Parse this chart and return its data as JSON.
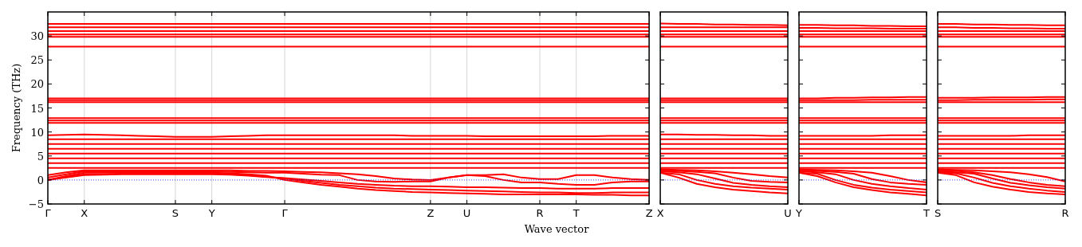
{
  "chart_data": [
    {
      "type": "line",
      "color": "#ff0000",
      "ylabel": "Frequency (THz)",
      "xlabel": "Wave vector",
      "ylim": [
        -5,
        35
      ],
      "yticks": [
        -5,
        0,
        5,
        10,
        15,
        20,
        25,
        30
      ],
      "grid": "x",
      "line_style": "solid",
      "marker": "none",
      "categories": [
        "Γ",
        null,
        "X",
        null,
        null,
        null,
        null,
        "S",
        null,
        "Y",
        null,
        null,
        null,
        "Γ",
        null,
        null,
        null,
        null,
        null,
        null,
        null,
        "Z",
        null,
        "U",
        null,
        null,
        null,
        "R",
        null,
        "T",
        null,
        null,
        null,
        "Z"
      ],
      "ref_lines": [
        {
          "axis": "y",
          "value": 0,
          "color": "#0000ff",
          "line_style": "dotted"
        }
      ],
      "series": [
        {
          "values": [
            32.5,
            32.5,
            32.5,
            32.5,
            32.5,
            32.5,
            32.5,
            32.5,
            32.5,
            32.5,
            32.5,
            32.5,
            32.5,
            32.5,
            32.5,
            32.5,
            32.5,
            32.5,
            32.5,
            32.5,
            32.5,
            32.5,
            32.5,
            32.5,
            32.5,
            32.5,
            32.5,
            32.5,
            32.5,
            32.5,
            32.5,
            32.5,
            32.5,
            32.5
          ]
        },
        {
          "values": [
            31.8,
            31.8,
            31.8,
            31.8,
            31.8,
            31.8,
            31.8,
            31.8,
            31.8,
            31.8,
            31.8,
            31.8,
            31.8,
            31.8,
            31.8,
            31.8,
            31.8,
            31.8,
            31.8,
            31.8,
            31.8,
            31.8,
            31.8,
            31.8,
            31.8,
            31.8,
            31.8,
            31.8,
            31.8,
            31.8,
            31.8,
            31.8,
            31.8,
            31.8
          ]
        },
        {
          "values": [
            31,
            31,
            31,
            31,
            31,
            31,
            31,
            31,
            31,
            31,
            31,
            31,
            31,
            31,
            31,
            31,
            31,
            31,
            31,
            31,
            31,
            31,
            31,
            31,
            31,
            31,
            31,
            31,
            31,
            31,
            31,
            31,
            31,
            31
          ]
        },
        {
          "values": [
            30.3,
            30.3,
            30.3,
            30.3,
            30.3,
            30.3,
            30.3,
            30.3,
            30.3,
            30.3,
            30.3,
            30.3,
            30.3,
            30.3,
            30.3,
            30.3,
            30.3,
            30.3,
            30.3,
            30.3,
            30.3,
            30.3,
            30.3,
            30.3,
            30.3,
            30.3,
            30.3,
            30.3,
            30.3,
            30.3,
            30.3,
            30.3,
            30.3,
            30.3
          ]
        },
        {
          "values": [
            29.8,
            29.8,
            29.8,
            29.8,
            29.8,
            29.8,
            29.8,
            29.8,
            29.8,
            29.8,
            29.8,
            29.8,
            29.8,
            29.8,
            29.8,
            29.8,
            29.8,
            29.8,
            29.8,
            29.8,
            29.8,
            29.8,
            29.8,
            29.8,
            29.8,
            29.8,
            29.8,
            29.8,
            29.8,
            29.8,
            29.8,
            29.8,
            29.8,
            29.8
          ]
        },
        {
          "values": [
            27.8,
            27.8,
            27.8,
            27.8,
            27.8,
            27.8,
            27.8,
            27.8,
            27.8,
            27.8,
            27.8,
            27.8,
            27.8,
            27.8,
            27.8,
            27.8,
            27.8,
            27.8,
            27.8,
            27.8,
            27.8,
            27.8,
            27.8,
            27.8,
            27.8,
            27.8,
            27.8,
            27.8,
            27.8,
            27.8,
            27.8,
            27.8,
            27.8,
            27.8
          ]
        },
        {
          "values": [
            17,
            17,
            17,
            17,
            17,
            17,
            17,
            17,
            17,
            17,
            17,
            17,
            17,
            17,
            17,
            17,
            17,
            17,
            17,
            17,
            17,
            17,
            17,
            17,
            17,
            17,
            17,
            17,
            17,
            17,
            17,
            17,
            17,
            17
          ]
        },
        {
          "values": [
            16.6,
            16.6,
            16.6,
            16.6,
            16.6,
            16.6,
            16.6,
            16.6,
            16.6,
            16.6,
            16.6,
            16.6,
            16.6,
            16.6,
            16.6,
            16.6,
            16.6,
            16.6,
            16.6,
            16.6,
            16.6,
            16.6,
            16.6,
            16.6,
            16.6,
            16.6,
            16.6,
            16.6,
            16.6,
            16.6,
            16.6,
            16.6,
            16.6,
            16.6
          ]
        },
        {
          "values": [
            16.2,
            16.2,
            16.2,
            16.2,
            16.2,
            16.2,
            16.2,
            16.2,
            16.2,
            16.2,
            16.2,
            16.2,
            16.2,
            16.2,
            16.2,
            16.2,
            16.2,
            16.2,
            16.2,
            16.2,
            16.2,
            16.2,
            16.2,
            16.2,
            16.2,
            16.2,
            16.2,
            16.2,
            16.2,
            16.2,
            16.2,
            16.2,
            16.2,
            16.2
          ]
        },
        {
          "values": [
            12.9,
            12.9,
            12.9,
            12.9,
            12.9,
            12.9,
            12.9,
            12.9,
            12.9,
            12.9,
            12.9,
            12.9,
            12.9,
            12.9,
            12.9,
            12.9,
            12.9,
            12.9,
            12.9,
            12.9,
            12.9,
            12.9,
            12.9,
            12.9,
            12.9,
            12.9,
            12.9,
            12.9,
            12.9,
            12.9,
            12.9,
            12.9,
            12.9,
            12.9
          ]
        },
        {
          "values": [
            12.4,
            12.4,
            12.4,
            12.4,
            12.4,
            12.4,
            12.4,
            12.4,
            12.4,
            12.4,
            12.4,
            12.4,
            12.4,
            12.4,
            12.4,
            12.4,
            12.4,
            12.4,
            12.4,
            12.4,
            12.4,
            12.4,
            12.4,
            12.4,
            12.4,
            12.4,
            12.4,
            12.4,
            12.4,
            12.4,
            12.4,
            12.4,
            12.4,
            12.4
          ]
        },
        {
          "values": [
            11.9,
            11.9,
            11.9,
            11.9,
            11.9,
            11.9,
            11.9,
            11.9,
            11.9,
            11.9,
            11.9,
            11.9,
            11.9,
            11.9,
            11.9,
            11.9,
            11.9,
            11.9,
            11.9,
            11.9,
            11.9,
            11.9,
            11.9,
            11.9,
            11.9,
            11.9,
            11.9,
            11.9,
            11.9,
            11.9,
            11.9,
            11.9,
            11.9,
            11.9
          ]
        },
        {
          "values": [
            9.3,
            9.4,
            9.5,
            9.4,
            9.3,
            9.2,
            9.1,
            9,
            9,
            9,
            9.1,
            9.2,
            9.3,
            9.3,
            9.3,
            9.3,
            9.3,
            9.3,
            9.3,
            9.3,
            9.2,
            9.2,
            9.2,
            9.2,
            9.1,
            9.1,
            9.1,
            9.1,
            9.1,
            9.1,
            9.1,
            9.2,
            9.2,
            9.2
          ]
        },
        {
          "values": [
            8.5,
            8.5,
            8.5,
            8.5,
            8.5,
            8.5,
            8.5,
            8.5,
            8.5,
            8.5,
            8.5,
            8.5,
            8.5,
            8.5,
            8.5,
            8.5,
            8.5,
            8.5,
            8.5,
            8.5,
            8.5,
            8.5,
            8.5,
            8.5,
            8.5,
            8.5,
            8.5,
            8.5,
            8.5,
            8.5,
            8.5,
            8.5,
            8.5,
            8.5
          ]
        },
        {
          "values": [
            7.5,
            7.5,
            7.5,
            7.5,
            7.5,
            7.5,
            7.5,
            7.5,
            7.5,
            7.5,
            7.5,
            7.5,
            7.5,
            7.5,
            7.5,
            7.5,
            7.5,
            7.5,
            7.5,
            7.5,
            7.5,
            7.5,
            7.5,
            7.5,
            7.5,
            7.5,
            7.5,
            7.5,
            7.5,
            7.5,
            7.5,
            7.5,
            7.5,
            7.5
          ]
        },
        {
          "values": [
            6.5,
            6.5,
            6.5,
            6.5,
            6.5,
            6.5,
            6.5,
            6.5,
            6.5,
            6.5,
            6.5,
            6.5,
            6.5,
            6.5,
            6.5,
            6.5,
            6.5,
            6.5,
            6.5,
            6.5,
            6.5,
            6.5,
            6.5,
            6.5,
            6.5,
            6.5,
            6.5,
            6.5,
            6.5,
            6.5,
            6.5,
            6.5,
            6.5,
            6.5
          ]
        },
        {
          "values": [
            5.5,
            5.5,
            5.5,
            5.5,
            5.5,
            5.5,
            5.5,
            5.5,
            5.5,
            5.5,
            5.5,
            5.5,
            5.5,
            5.5,
            5.5,
            5.5,
            5.5,
            5.5,
            5.5,
            5.5,
            5.5,
            5.5,
            5.5,
            5.5,
            5.5,
            5.5,
            5.5,
            5.5,
            5.5,
            5.5,
            5.5,
            5.5,
            5.5,
            5.5
          ]
        },
        {
          "values": [
            4.5,
            4.5,
            4.5,
            4.5,
            4.5,
            4.5,
            4.5,
            4.5,
            4.5,
            4.5,
            4.5,
            4.5,
            4.5,
            4.5,
            4.5,
            4.5,
            4.5,
            4.5,
            4.5,
            4.5,
            4.5,
            4.5,
            4.5,
            4.5,
            4.5,
            4.5,
            4.5,
            4.5,
            4.5,
            4.5,
            4.5,
            4.5,
            4.5,
            4.5
          ]
        },
        {
          "values": [
            3.5,
            3.5,
            3.5,
            3.5,
            3.5,
            3.5,
            3.5,
            3.5,
            3.5,
            3.5,
            3.5,
            3.5,
            3.5,
            3.5,
            3.5,
            3.5,
            3.5,
            3.5,
            3.5,
            3.5,
            3.5,
            3.5,
            3.5,
            3.5,
            3.5,
            3.5,
            3.5,
            3.5,
            3.5,
            3.5,
            3.5,
            3.5,
            3.5,
            3.5
          ]
        },
        {
          "values": [
            2.5,
            2.5,
            2.5,
            2.5,
            2.5,
            2.5,
            2.5,
            2.5,
            2.5,
            2.5,
            2.5,
            2.5,
            2.5,
            2.5,
            2.5,
            2.5,
            2.5,
            2.5,
            2.5,
            2.5,
            2.5,
            2.5,
            2.5,
            2.5,
            2.5,
            2.5,
            2.5,
            2.5,
            2.5,
            2.5,
            2.5,
            2.5,
            2.5,
            2.5
          ]
        },
        {
          "values": [
            1,
            1.6,
            2,
            2,
            2,
            2,
            2,
            2,
            2,
            2,
            2,
            1.9,
            1.9,
            1.8,
            1.7,
            1.6,
            1.4,
            1.2,
            0.8,
            0.3,
            0.1,
            0,
            0.5,
            1,
            1,
            1.2,
            0.5,
            0.2,
            0.2,
            1,
            1,
            0.5,
            0.2,
            0
          ]
        },
        {
          "values": [
            0.5,
            1.2,
            1.8,
            1.8,
            1.8,
            1.8,
            1.8,
            1.8,
            1.8,
            1.8,
            1.7,
            1.6,
            1.5,
            1.5,
            1.3,
            1.1,
            1,
            0,
            -0.3,
            -0.4,
            -0.3,
            -0.3,
            0.5,
            1,
            0.8,
            0,
            -0.5,
            -0.5,
            -0.8,
            -1,
            -1,
            -0.5,
            -0.3,
            -0.3
          ]
        },
        {
          "values": [
            0,
            0.5,
            1,
            1.1,
            1.2,
            1.2,
            1.2,
            1.2,
            1.2,
            1.2,
            1.1,
            0.9,
            0.6,
            0.4,
            0.1,
            -0.2,
            -0.5,
            -0.8,
            -1,
            -1.2,
            -1.3,
            -1.3,
            -1.4,
            -1.5,
            -1.5,
            -1.6,
            -1.7,
            -1.7,
            -1.8,
            -1.8,
            -1.8,
            -1.7,
            -1.7,
            -1.7
          ]
        },
        {
          "values": [
            0,
            0.6,
            1.2,
            1.2,
            1.3,
            1.3,
            1.3,
            1.3,
            1.3,
            1.3,
            1.2,
            1,
            0.7,
            0.3,
            -0.2,
            -0.6,
            -1,
            -1.3,
            -1.6,
            -1.8,
            -1.9,
            -2,
            -2.1,
            -2.2,
            -2.3,
            -2.4,
            -2.5,
            -2.6,
            -2.6,
            -2.7,
            -2.7,
            -2.6,
            -2.6,
            -2.6
          ]
        },
        {
          "values": [
            0,
            0.8,
            1.5,
            1.5,
            1.5,
            1.5,
            1.5,
            1.5,
            1.5,
            1.5,
            1.4,
            1.2,
            0.9,
            0,
            -0.5,
            -1,
            -1.4,
            -1.8,
            -2.1,
            -2.3,
            -2.5,
            -2.6,
            -2.7,
            -2.8,
            -2.9,
            -3,
            -3,
            -3,
            -3,
            -3,
            -3.1,
            -3.1,
            -3.2,
            -3.2
          ]
        }
      ]
    },
    {
      "type": "line",
      "color": "#ff0000",
      "ylim": [
        -5,
        35
      ],
      "yticks": [
        -5,
        0,
        5,
        10,
        15,
        20,
        25,
        30
      ],
      "tick_labels": "x",
      "line_style": "solid",
      "marker": "none",
      "categories": [
        "X",
        null,
        null,
        null,
        null,
        null,
        null,
        "U"
      ],
      "ref_lines": [
        {
          "axis": "y",
          "value": 0,
          "color": "#0000ff",
          "line_style": "dotted"
        }
      ],
      "series": [
        {
          "values": [
            32.6,
            32.5,
            32.5,
            32.4,
            32.4,
            32.3,
            32.3,
            32.2
          ]
        },
        {
          "values": [
            31.8,
            31.8,
            31.8,
            31.8,
            31.8,
            31.8,
            31.8,
            31.8
          ]
        },
        {
          "values": [
            31,
            31,
            31,
            31,
            31,
            31,
            31,
            31
          ]
        },
        {
          "values": [
            30.3,
            30.3,
            30.3,
            30.3,
            30.3,
            30.3,
            30.3,
            30.3
          ]
        },
        {
          "values": [
            29.8,
            29.8,
            29.8,
            29.8,
            29.8,
            29.8,
            29.8,
            29.8
          ]
        },
        {
          "values": [
            27.8,
            27.8,
            27.8,
            27.8,
            27.8,
            27.8,
            27.8,
            27.8
          ]
        },
        {
          "values": [
            17,
            17,
            17,
            17,
            17,
            17,
            17,
            17
          ]
        },
        {
          "values": [
            16.6,
            16.6,
            16.6,
            16.6,
            16.6,
            16.6,
            16.6,
            16.6
          ]
        },
        {
          "values": [
            16.2,
            16.2,
            16.2,
            16.2,
            16.2,
            16.2,
            16.2,
            16.2
          ]
        },
        {
          "values": [
            12.9,
            12.9,
            12.9,
            12.9,
            12.9,
            12.9,
            12.9,
            12.9
          ]
        },
        {
          "values": [
            12.4,
            12.4,
            12.4,
            12.4,
            12.4,
            12.4,
            12.4,
            12.4
          ]
        },
        {
          "values": [
            11.9,
            11.9,
            11.9,
            11.9,
            11.9,
            11.9,
            11.9,
            11.9
          ]
        },
        {
          "values": [
            9.5,
            9.5,
            9.4,
            9.4,
            9.3,
            9.3,
            9.2,
            9.2
          ]
        },
        {
          "values": [
            8.5,
            8.5,
            8.5,
            8.5,
            8.5,
            8.5,
            8.5,
            8.5
          ]
        },
        {
          "values": [
            7.5,
            7.5,
            7.5,
            7.5,
            7.5,
            7.5,
            7.5,
            7.5
          ]
        },
        {
          "values": [
            6.5,
            6.5,
            6.5,
            6.5,
            6.5,
            6.5,
            6.5,
            6.5
          ]
        },
        {
          "values": [
            5.5,
            5.5,
            5.5,
            5.5,
            5.5,
            5.5,
            5.5,
            5.5
          ]
        },
        {
          "values": [
            4.5,
            4.5,
            4.5,
            4.5,
            4.5,
            4.5,
            4.5,
            4.5
          ]
        },
        {
          "values": [
            3.5,
            3.5,
            3.5,
            3.5,
            3.5,
            3.5,
            3.5,
            3.5
          ]
        },
        {
          "values": [
            2.5,
            2.5,
            2.5,
            2.5,
            2.5,
            2.5,
            2.5,
            2.5
          ]
        },
        {
          "values": [
            2.2,
            2.1,
            2,
            1.8,
            1.5,
            1.2,
            0.8,
            0.5
          ]
        },
        {
          "values": [
            2,
            1.9,
            1.7,
            1.4,
            0.5,
            -0.2,
            -0.4,
            -0.5
          ]
        },
        {
          "values": [
            1.8,
            1.6,
            1.2,
            0.3,
            -0.6,
            -1,
            -1.3,
            -1.5
          ]
        },
        {
          "values": [
            1.5,
            1.2,
            0,
            -0.8,
            -1.3,
            -1.6,
            -1.8,
            -2
          ]
        },
        {
          "values": [
            1.5,
            0.5,
            -0.8,
            -1.5,
            -2,
            -2.3,
            -2.6,
            -2.8
          ]
        }
      ]
    },
    {
      "type": "line",
      "color": "#ff0000",
      "ylim": [
        -5,
        35
      ],
      "yticks": [
        -5,
        0,
        5,
        10,
        15,
        20,
        25,
        30
      ],
      "tick_labels": "x",
      "line_style": "solid",
      "marker": "none",
      "categories": [
        "Y",
        null,
        null,
        null,
        null,
        null,
        null,
        "T"
      ],
      "ref_lines": [
        {
          "axis": "y",
          "value": 0,
          "color": "#0000ff",
          "line_style": "dotted"
        }
      ],
      "series": [
        {
          "values": [
            32.3,
            32.3,
            32.2,
            32.2,
            32.1,
            32.1,
            32,
            32
          ]
        },
        {
          "values": [
            31.7,
            31.7,
            31.6,
            31.6,
            31.6,
            31.5,
            31.5,
            31.5
          ]
        },
        {
          "values": [
            31,
            31,
            31,
            31,
            31,
            31,
            31,
            31
          ]
        },
        {
          "values": [
            30.3,
            30.3,
            30.3,
            30.3,
            30.3,
            30.3,
            30.3,
            30.3
          ]
        },
        {
          "values": [
            29.8,
            29.8,
            29.8,
            29.8,
            29.8,
            29.8,
            29.8,
            29.8
          ]
        },
        {
          "values": [
            27.8,
            27.8,
            27.8,
            27.8,
            27.8,
            27.8,
            27.8,
            27.8
          ]
        },
        {
          "values": [
            17,
            17,
            17.1,
            17.1,
            17.2,
            17.2,
            17.3,
            17.3
          ]
        },
        {
          "values": [
            16.6,
            16.6,
            16.6,
            16.6,
            16.7,
            16.7,
            16.7,
            16.7
          ]
        },
        {
          "values": [
            16.2,
            16.2,
            16.2,
            16.2,
            16.2,
            16.2,
            16.2,
            16.2
          ]
        },
        {
          "values": [
            12.9,
            12.9,
            12.9,
            12.9,
            12.9,
            12.9,
            12.9,
            12.9
          ]
        },
        {
          "values": [
            12.4,
            12.4,
            12.4,
            12.4,
            12.4,
            12.4,
            12.4,
            12.4
          ]
        },
        {
          "values": [
            11.9,
            11.9,
            11.9,
            11.9,
            11.9,
            11.9,
            11.9,
            11.9
          ]
        },
        {
          "values": [
            9.2,
            9.2,
            9.2,
            9.2,
            9.2,
            9.3,
            9.3,
            9.3
          ]
        },
        {
          "values": [
            8.5,
            8.5,
            8.5,
            8.5,
            8.5,
            8.5,
            8.5,
            8.5
          ]
        },
        {
          "values": [
            7.5,
            7.5,
            7.5,
            7.5,
            7.5,
            7.5,
            7.5,
            7.5
          ]
        },
        {
          "values": [
            6.5,
            6.5,
            6.5,
            6.5,
            6.5,
            6.5,
            6.5,
            6.5
          ]
        },
        {
          "values": [
            5.5,
            5.5,
            5.5,
            5.5,
            5.5,
            5.5,
            5.5,
            5.5
          ]
        },
        {
          "values": [
            4.5,
            4.5,
            4.5,
            4.5,
            4.5,
            4.5,
            4.5,
            4.5
          ]
        },
        {
          "values": [
            3.5,
            3.5,
            3.5,
            3.5,
            3.5,
            3.5,
            3.5,
            3.5
          ]
        },
        {
          "values": [
            2.5,
            2.5,
            2.5,
            2.5,
            2.5,
            2.5,
            2.5,
            2.5
          ]
        },
        {
          "values": [
            2.2,
            2.1,
            2,
            1.8,
            1.5,
            0.8,
            0,
            -0.5
          ]
        },
        {
          "values": [
            2,
            1.9,
            1.7,
            1.3,
            0.2,
            -0.5,
            -0.8,
            -1
          ]
        },
        {
          "values": [
            1.8,
            1.6,
            1.2,
            0,
            -0.8,
            -1.3,
            -1.7,
            -2
          ]
        },
        {
          "values": [
            1.5,
            1.3,
            0,
            -1,
            -1.6,
            -2,
            -2.3,
            -2.6
          ]
        },
        {
          "values": [
            1.5,
            0.8,
            -0.5,
            -1.5,
            -2.1,
            -2.6,
            -2.9,
            -3.2
          ]
        }
      ]
    },
    {
      "type": "line",
      "color": "#ff0000",
      "ylim": [
        -5,
        35
      ],
      "yticks": [
        -5,
        0,
        5,
        10,
        15,
        20,
        25,
        30
      ],
      "tick_labels": "x",
      "line_style": "solid",
      "marker": "none",
      "categories": [
        "S",
        null,
        null,
        null,
        null,
        null,
        null,
        "R"
      ],
      "ref_lines": [
        {
          "axis": "y",
          "value": 0,
          "color": "#0000ff",
          "line_style": "dotted"
        }
      ],
      "series": [
        {
          "values": [
            32.5,
            32.5,
            32.4,
            32.4,
            32.3,
            32.3,
            32.2,
            32.2
          ]
        },
        {
          "values": [
            31.8,
            31.8,
            31.7,
            31.7,
            31.6,
            31.6,
            31.5,
            31.5
          ]
        },
        {
          "values": [
            31,
            31,
            31,
            31,
            31,
            31,
            31,
            31
          ]
        },
        {
          "values": [
            30.3,
            30.3,
            30.3,
            30.3,
            30.3,
            30.3,
            30.3,
            30.3
          ]
        },
        {
          "values": [
            29.8,
            29.8,
            29.8,
            29.8,
            29.8,
            29.8,
            29.8,
            29.8
          ]
        },
        {
          "values": [
            27.8,
            27.8,
            27.8,
            27.8,
            27.8,
            27.8,
            27.8,
            27.8
          ]
        },
        {
          "values": [
            17.1,
            17.1,
            17.1,
            17.2,
            17.2,
            17.2,
            17.3,
            17.3
          ]
        },
        {
          "values": [
            16.6,
            16.6,
            16.7,
            16.7,
            16.7,
            16.7,
            16.8,
            16.8
          ]
        },
        {
          "values": [
            16.2,
            16.2,
            16.2,
            16.2,
            16.2,
            16.2,
            16.2,
            16.2
          ]
        },
        {
          "values": [
            12.9,
            12.9,
            12.9,
            12.9,
            12.9,
            12.9,
            12.9,
            12.9
          ]
        },
        {
          "values": [
            12.4,
            12.4,
            12.4,
            12.4,
            12.4,
            12.4,
            12.4,
            12.4
          ]
        },
        {
          "values": [
            11.9,
            11.9,
            11.9,
            11.9,
            11.9,
            11.9,
            11.9,
            11.9
          ]
        },
        {
          "values": [
            9.2,
            9.2,
            9.2,
            9.2,
            9.2,
            9.3,
            9.3,
            9.3
          ]
        },
        {
          "values": [
            8.5,
            8.5,
            8.5,
            8.5,
            8.5,
            8.5,
            8.5,
            8.5
          ]
        },
        {
          "values": [
            7.5,
            7.5,
            7.5,
            7.5,
            7.5,
            7.5,
            7.5,
            7.5
          ]
        },
        {
          "values": [
            6.5,
            6.5,
            6.5,
            6.5,
            6.5,
            6.5,
            6.5,
            6.5
          ]
        },
        {
          "values": [
            5.5,
            5.5,
            5.5,
            5.5,
            5.5,
            5.5,
            5.5,
            5.5
          ]
        },
        {
          "values": [
            4.5,
            4.5,
            4.5,
            4.5,
            4.5,
            4.5,
            4.5,
            4.5
          ]
        },
        {
          "values": [
            3.5,
            3.5,
            3.5,
            3.5,
            3.5,
            3.5,
            3.5,
            3.5
          ]
        },
        {
          "values": [
            2.5,
            2.5,
            2.5,
            2.5,
            2.5,
            2.5,
            2.5,
            2.5
          ]
        },
        {
          "values": [
            2.2,
            2.1,
            2,
            1.8,
            1.6,
            1.2,
            0.6,
            -0.3
          ]
        },
        {
          "values": [
            2,
            1.9,
            1.6,
            1,
            0.2,
            -0.5,
            -1,
            -1.3
          ]
        },
        {
          "values": [
            1.8,
            1.6,
            1.3,
            0.3,
            -0.6,
            -1.1,
            -1.5,
            -1.8
          ]
        },
        {
          "values": [
            1.6,
            1.4,
            0.5,
            -0.6,
            -1.3,
            -1.8,
            -2.2,
            -2.5
          ]
        },
        {
          "values": [
            1.5,
            1,
            -0.5,
            -1.4,
            -2,
            -2.5,
            -2.8,
            -3
          ]
        }
      ]
    }
  ]
}
